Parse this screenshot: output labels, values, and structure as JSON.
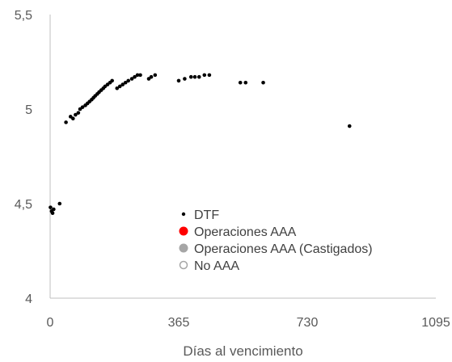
{
  "chart_data": {
    "type": "scatter",
    "xlabel": "Días al vencimiento",
    "ylabel": "",
    "xlim": [
      0,
      1095
    ],
    "ylim": [
      4,
      5.5
    ],
    "x_ticks": [
      0,
      365,
      730,
      1095
    ],
    "x_tick_labels": [
      "0",
      "365",
      "730",
      "1095"
    ],
    "y_ticks": [
      4,
      4.5,
      5,
      5.5
    ],
    "y_tick_labels": [
      "4",
      "4,5",
      "5",
      "5,5"
    ],
    "grid": false,
    "legend_position": "center",
    "legend": [
      {
        "label": "DTF",
        "marker": "small-dot",
        "color": "#000000"
      },
      {
        "label": "Operaciones AAA",
        "marker": "filled-circle",
        "color": "#ff0000"
      },
      {
        "label": "Operaciones AAA (Castigados)",
        "marker": "filled-circle",
        "color": "#a6a6a6"
      },
      {
        "label": "No AAA",
        "marker": "hollow-circle",
        "color": "#a6a6a6"
      }
    ],
    "series": [
      {
        "name": "DTF",
        "color": "#000000",
        "points": [
          [
            1,
            4.48
          ],
          [
            4,
            4.46
          ],
          [
            7,
            4.45
          ],
          [
            10,
            4.47
          ],
          [
            27,
            4.5
          ],
          [
            45,
            4.93
          ],
          [
            58,
            4.96
          ],
          [
            65,
            4.95
          ],
          [
            72,
            4.97
          ],
          [
            80,
            4.98
          ],
          [
            85,
            5.0
          ],
          [
            92,
            5.01
          ],
          [
            100,
            5.02
          ],
          [
            106,
            5.03
          ],
          [
            112,
            5.04
          ],
          [
            118,
            5.05
          ],
          [
            123,
            5.06
          ],
          [
            128,
            5.07
          ],
          [
            134,
            5.08
          ],
          [
            139,
            5.09
          ],
          [
            145,
            5.1
          ],
          [
            151,
            5.11
          ],
          [
            156,
            5.12
          ],
          [
            163,
            5.13
          ],
          [
            170,
            5.14
          ],
          [
            176,
            5.15
          ],
          [
            190,
            5.11
          ],
          [
            198,
            5.12
          ],
          [
            206,
            5.13
          ],
          [
            214,
            5.14
          ],
          [
            222,
            5.15
          ],
          [
            232,
            5.16
          ],
          [
            240,
            5.17
          ],
          [
            248,
            5.18
          ],
          [
            256,
            5.18
          ],
          [
            280,
            5.16
          ],
          [
            287,
            5.17
          ],
          [
            298,
            5.18
          ],
          [
            365,
            5.15
          ],
          [
            382,
            5.16
          ],
          [
            400,
            5.17
          ],
          [
            411,
            5.17
          ],
          [
            423,
            5.17
          ],
          [
            438,
            5.18
          ],
          [
            452,
            5.18
          ],
          [
            540,
            5.14
          ],
          [
            555,
            5.14
          ],
          [
            605,
            5.14
          ],
          [
            850,
            4.91
          ]
        ]
      },
      {
        "name": "Operaciones AAA",
        "color": "#ff0000",
        "points": []
      },
      {
        "name": "Operaciones AAA (Castigados)",
        "color": "#a6a6a6",
        "points": []
      },
      {
        "name": "No AAA",
        "color": "#a6a6a6",
        "points": []
      }
    ]
  }
}
